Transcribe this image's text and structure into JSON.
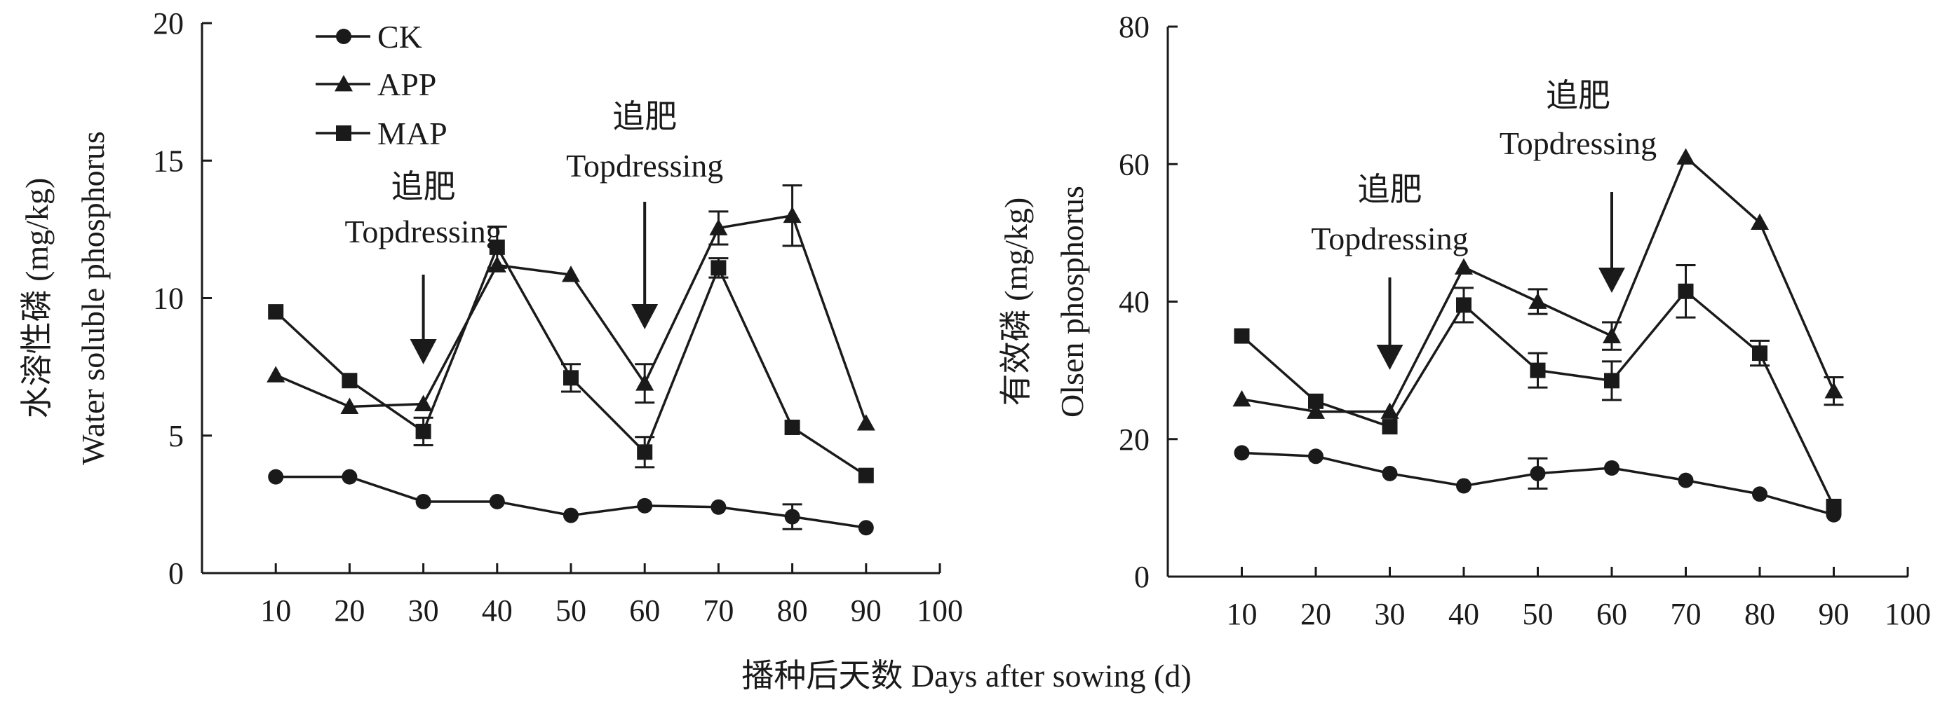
{
  "chart_data": [
    {
      "type": "line",
      "ylabel_cn": "水溶性磷 (mg/kg)",
      "ylabel_en": "Water soluble phosphorus",
      "xlim": [
        0,
        100
      ],
      "ylim": [
        0,
        20
      ],
      "xticks": [
        10,
        20,
        30,
        40,
        50,
        60,
        70,
        80,
        90,
        100
      ],
      "yticks": [
        0,
        5,
        10,
        15,
        20
      ],
      "x": [
        10,
        20,
        30,
        40,
        50,
        60,
        70,
        80,
        90
      ],
      "series": [
        {
          "name": "CK",
          "marker": "circle",
          "values": [
            3.5,
            3.5,
            2.6,
            2.6,
            2.1,
            2.45,
            2.4,
            2.05,
            1.65
          ],
          "errors": [
            0,
            0,
            0,
            0,
            0,
            0,
            0,
            0.45,
            0
          ]
        },
        {
          "name": "APP",
          "marker": "triangle",
          "values": [
            7.2,
            6.05,
            6.15,
            11.2,
            10.85,
            6.9,
            12.55,
            13.0,
            5.45
          ],
          "errors": [
            0,
            0,
            0,
            0,
            0,
            0.7,
            0.6,
            1.1,
            0
          ]
        },
        {
          "name": "MAP",
          "marker": "square",
          "values": [
            9.5,
            7.0,
            5.15,
            11.85,
            7.1,
            4.4,
            11.1,
            5.3,
            3.55
          ],
          "errors": [
            0,
            0,
            0.5,
            0.75,
            0.5,
            0.55,
            0.35,
            0,
            0
          ]
        }
      ],
      "legend": {
        "position": "top-left",
        "entries": [
          "CK",
          "APP",
          "MAP"
        ]
      },
      "annotations": [
        {
          "cn": "追肥",
          "en": "Topdressing",
          "x": 30
        },
        {
          "cn": "追肥",
          "en": "Topdressing",
          "x": 60
        }
      ]
    },
    {
      "type": "line",
      "ylabel_cn": "有效磷 (mg/kg)",
      "ylabel_en": "Olsen phosphorus",
      "xlim": [
        0,
        100
      ],
      "ylim": [
        0,
        80
      ],
      "xticks": [
        10,
        20,
        30,
        40,
        50,
        60,
        70,
        80,
        90,
        100
      ],
      "yticks": [
        0,
        20,
        40,
        60,
        80
      ],
      "x": [
        10,
        20,
        30,
        40,
        50,
        60,
        70,
        80,
        90
      ],
      "series": [
        {
          "name": "CK",
          "marker": "circle",
          "values": [
            18.0,
            17.5,
            15.0,
            13.2,
            15.0,
            15.8,
            14.0,
            12.0,
            9.0
          ],
          "errors": [
            0,
            0,
            0,
            0,
            2.2,
            0,
            0,
            0,
            0
          ]
        },
        {
          "name": "APP",
          "marker": "triangle",
          "values": [
            25.8,
            24.0,
            24.0,
            45.0,
            40.0,
            35.0,
            61.0,
            51.5,
            27.0
          ],
          "errors": [
            0,
            0,
            0,
            0,
            1.8,
            2.0,
            0,
            0,
            2.0
          ]
        },
        {
          "name": "MAP",
          "marker": "square",
          "values": [
            35.0,
            25.5,
            21.8,
            39.5,
            30.0,
            28.5,
            41.5,
            32.5,
            10.2
          ],
          "errors": [
            0,
            0,
            0,
            2.5,
            2.5,
            2.8,
            3.8,
            1.8,
            0
          ]
        }
      ],
      "annotations": [
        {
          "cn": "追肥",
          "en": "Topdressing",
          "x": 30
        },
        {
          "cn": "追肥",
          "en": "Topdressing",
          "x": 60
        }
      ]
    }
  ],
  "xlabel": "播种后天数 Days after sowing (d)"
}
